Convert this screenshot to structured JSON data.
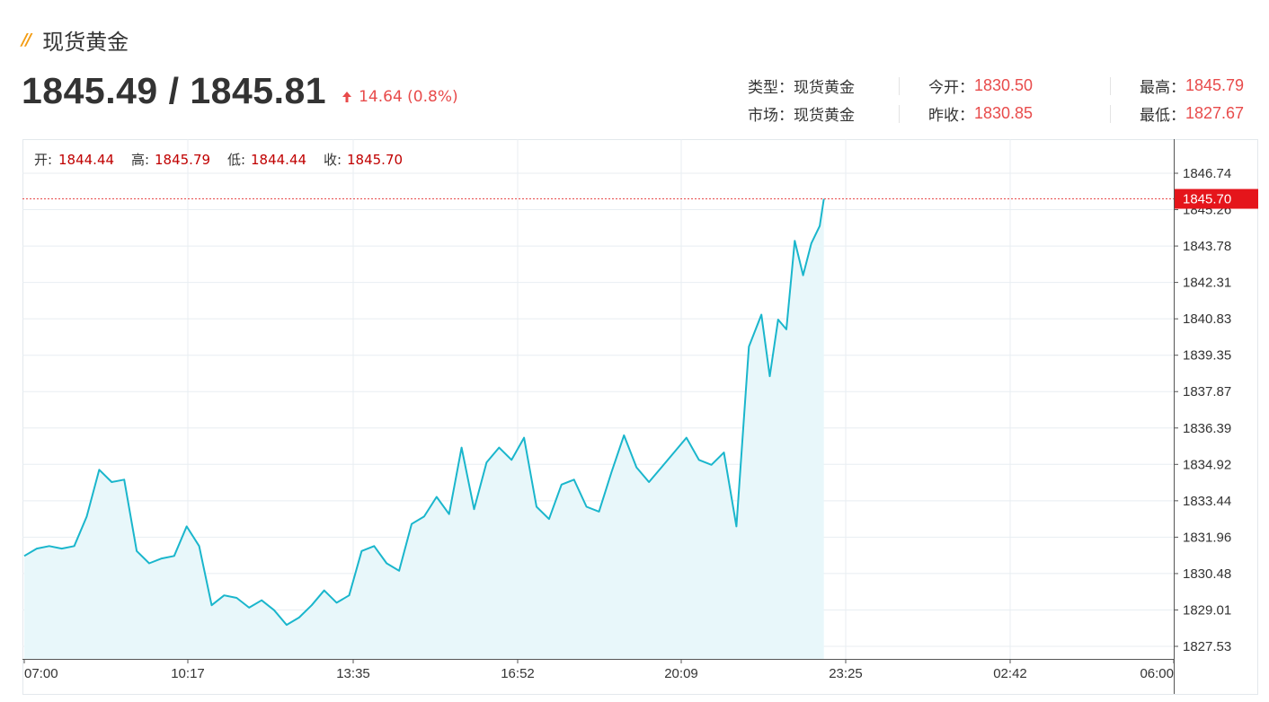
{
  "title": "现货黄金",
  "price": "1845.49 / 1845.81",
  "change": "14.64 (0.8%)",
  "info": {
    "type_label": "类型：",
    "type_value": "现货黄金",
    "open_label": "今开：",
    "open_value": "1830.50",
    "high_label": "最高：",
    "high_value": "1845.79",
    "market_label": "市场：",
    "market_value": "现货黄金",
    "prev_label": "昨收：",
    "prev_value": "1830.85",
    "low_label": "最低：",
    "low_value": "1827.67"
  },
  "ohlc": {
    "open_label": "开:",
    "open": "1844.44",
    "high_label": "高:",
    "high": "1845.79",
    "low_label": "低:",
    "low": "1844.44",
    "close_label": "收:",
    "close": "1845.70"
  },
  "colors": {
    "up": "#e84b4b",
    "line": "#1ab6cc",
    "area": "#e8f7fa",
    "grid": "#e8eef2",
    "accent": "#f39c12"
  },
  "chart_data": {
    "type": "area",
    "x_ticks": [
      "07:00",
      "10:17",
      "13:35",
      "16:52",
      "20:09",
      "23:25",
      "02:42",
      "06:00"
    ],
    "y_ticks": [
      1846.74,
      1845.26,
      1843.78,
      1842.31,
      1840.83,
      1839.35,
      1837.87,
      1836.39,
      1834.92,
      1833.44,
      1831.96,
      1830.48,
      1829.01,
      1827.53
    ],
    "ylim": [
      1827.2,
      1847.5
    ],
    "current_price": "1845.70",
    "x": [
      "07:00",
      "07:15",
      "07:30",
      "07:45",
      "08:00",
      "08:15",
      "08:30",
      "08:45",
      "09:00",
      "09:15",
      "09:30",
      "09:45",
      "10:00",
      "10:15",
      "10:30",
      "10:45",
      "11:00",
      "11:15",
      "11:30",
      "11:45",
      "12:00",
      "12:15",
      "12:30",
      "12:45",
      "13:00",
      "13:15",
      "13:30",
      "13:45",
      "14:00",
      "14:15",
      "14:30",
      "14:45",
      "15:00",
      "15:15",
      "15:30",
      "15:45",
      "16:00",
      "16:15",
      "16:30",
      "16:45",
      "17:00",
      "17:15",
      "17:30",
      "17:45",
      "18:00",
      "18:15",
      "18:30",
      "18:45",
      "19:00",
      "19:15",
      "19:30",
      "19:45",
      "20:00",
      "20:15",
      "20:30",
      "20:45",
      "21:00",
      "21:15",
      "21:30",
      "21:45",
      "21:55",
      "22:05",
      "22:15",
      "22:25",
      "22:35",
      "22:45",
      "22:55",
      "23:00"
    ],
    "values": [
      1831.2,
      1831.5,
      1831.6,
      1831.5,
      1831.6,
      1832.8,
      1834.7,
      1834.2,
      1834.3,
      1831.4,
      1830.9,
      1831.1,
      1831.2,
      1832.4,
      1831.6,
      1829.2,
      1829.6,
      1829.5,
      1829.1,
      1829.4,
      1829.0,
      1828.4,
      1828.7,
      1829.2,
      1829.8,
      1829.3,
      1829.6,
      1831.4,
      1831.6,
      1830.9,
      1830.6,
      1832.5,
      1832.8,
      1833.6,
      1832.9,
      1835.6,
      1833.1,
      1835.0,
      1835.6,
      1835.1,
      1836.0,
      1833.2,
      1832.7,
      1834.1,
      1834.3,
      1833.2,
      1833.0,
      1834.6,
      1836.1,
      1834.8,
      1834.2,
      1834.8,
      1835.4,
      1836.0,
      1835.1,
      1834.9,
      1835.4,
      1832.4,
      1839.7,
      1841.0,
      1838.5,
      1840.8,
      1840.4,
      1844.0,
      1842.6,
      1843.9,
      1844.6,
      1845.7
    ]
  }
}
